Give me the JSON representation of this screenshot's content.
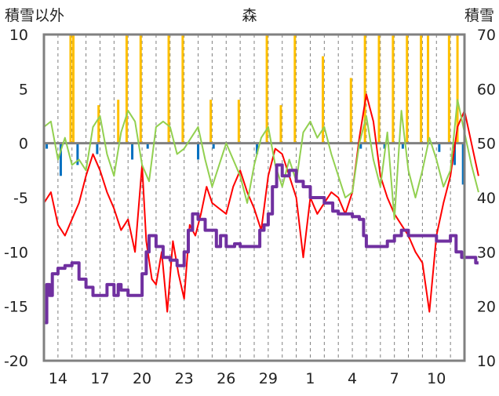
{
  "header": {
    "title": "森",
    "left_axis_label": "積雪以外",
    "right_axis_label": "積雪"
  },
  "colors": {
    "red_series": "#ff0000",
    "green_series": "#92d050",
    "purple_series": "#7030a0",
    "orange_bars": "#ffc000",
    "blue_bars": "#0070c0",
    "frame": "#808080",
    "zero_line": "#808080",
    "grid": "#808080"
  },
  "chart_data": {
    "type": "line",
    "title": "森",
    "legend": "none",
    "x_ticks": [
      "14",
      "17",
      "20",
      "23",
      "26",
      "29",
      "1",
      "4",
      "7",
      "10"
    ],
    "x_range_days": [
      13,
      43
    ],
    "y_left": {
      "label": "積雪以外",
      "lim": [
        -20,
        10
      ],
      "ticks": [
        "10",
        "5",
        "0",
        "-5",
        "-10",
        "-15",
        "-20"
      ]
    },
    "y_right": {
      "label": "積雪",
      "lim": [
        10,
        70
      ],
      "ticks": [
        "70",
        "60",
        "50",
        "40",
        "30",
        "20",
        "10"
      ]
    },
    "grid": {
      "vertical": "dashed",
      "horizontal": false
    },
    "series": [
      {
        "name": "",
        "kind": "line",
        "axis": "left",
        "color_key": "red_series",
        "points": [
          [
            13,
            -5.5
          ],
          [
            13.5,
            -4.5
          ],
          [
            14,
            -7.5
          ],
          [
            14.5,
            -8.5
          ],
          [
            15,
            -7
          ],
          [
            15.5,
            -5.5
          ],
          [
            16,
            -3
          ],
          [
            16.5,
            -1
          ],
          [
            17,
            -2.5
          ],
          [
            17.5,
            -4.5
          ],
          [
            18,
            -6
          ],
          [
            18.5,
            -8
          ],
          [
            19,
            -7
          ],
          [
            19.5,
            -10
          ],
          [
            20,
            -2
          ],
          [
            20.3,
            -9
          ],
          [
            20.7,
            -12.5
          ],
          [
            21,
            -13
          ],
          [
            21.4,
            -10
          ],
          [
            21.8,
            -15.5
          ],
          [
            22.2,
            -9
          ],
          [
            22.6,
            -12
          ],
          [
            23,
            -14.3
          ],
          [
            23.4,
            -7.5
          ],
          [
            23.8,
            -8.5
          ],
          [
            24.2,
            -6.5
          ],
          [
            24.6,
            -4
          ],
          [
            25,
            -5.5
          ],
          [
            25.5,
            -6
          ],
          [
            26,
            -6.5
          ],
          [
            26.5,
            -4
          ],
          [
            27,
            -2.5
          ],
          [
            27.5,
            -4.5
          ],
          [
            28,
            -6
          ],
          [
            28.5,
            -8
          ],
          [
            29,
            -3
          ],
          [
            29.5,
            -0.5
          ],
          [
            30,
            -1
          ],
          [
            30.5,
            -3
          ],
          [
            31,
            -5
          ],
          [
            31.5,
            -10.5
          ],
          [
            32,
            -5
          ],
          [
            32.5,
            -6.5
          ],
          [
            33,
            -5.5
          ],
          [
            33.5,
            -4.5
          ],
          [
            34,
            -5
          ],
          [
            34.5,
            -6.5
          ],
          [
            35,
            -4.5
          ],
          [
            35.5,
            0.5
          ],
          [
            36,
            4.5
          ],
          [
            36.5,
            2
          ],
          [
            37,
            -3
          ],
          [
            37.5,
            -5
          ],
          [
            38,
            -6.5
          ],
          [
            38.5,
            -7.5
          ],
          [
            39,
            -8.5
          ],
          [
            39.5,
            -10
          ],
          [
            40,
            -11
          ],
          [
            40.5,
            -15.5
          ],
          [
            41,
            -8.5
          ],
          [
            41.5,
            -5.5
          ],
          [
            42,
            -3
          ],
          [
            42.5,
            1.5
          ],
          [
            43,
            3
          ],
          [
            43.5,
            0
          ],
          [
            44,
            -3
          ]
        ]
      },
      {
        "name": "",
        "kind": "line",
        "axis": "left",
        "color_key": "green_series",
        "points": [
          [
            13,
            1.5
          ],
          [
            13.5,
            2
          ],
          [
            14,
            -1.5
          ],
          [
            14.5,
            0.5
          ],
          [
            15,
            -2
          ],
          [
            15.5,
            -1.5
          ],
          [
            16,
            -2.5
          ],
          [
            16.5,
            1.5
          ],
          [
            17,
            2.5
          ],
          [
            17.5,
            -1
          ],
          [
            18,
            -3
          ],
          [
            18.5,
            1
          ],
          [
            19,
            3
          ],
          [
            19.5,
            2
          ],
          [
            20,
            -2
          ],
          [
            20.5,
            -3.5
          ],
          [
            21,
            1.5
          ],
          [
            21.5,
            2
          ],
          [
            22,
            1.5
          ],
          [
            22.5,
            -1
          ],
          [
            23,
            -0.5
          ],
          [
            23.5,
            0.5
          ],
          [
            24,
            1.5
          ],
          [
            24.5,
            -1.5
          ],
          [
            25,
            -4
          ],
          [
            25.5,
            -2
          ],
          [
            26,
            0
          ],
          [
            26.5,
            -1.5
          ],
          [
            27,
            -3
          ],
          [
            27.5,
            -5.5
          ],
          [
            28,
            -2
          ],
          [
            28.5,
            0.5
          ],
          [
            29,
            1.5
          ],
          [
            29.5,
            -2
          ],
          [
            30,
            -4
          ],
          [
            30.5,
            -1.5
          ],
          [
            31,
            -3.5
          ],
          [
            31.5,
            1
          ],
          [
            32,
            2
          ],
          [
            32.5,
            0.5
          ],
          [
            33,
            1.5
          ],
          [
            33.5,
            -1
          ],
          [
            34,
            -3
          ],
          [
            34.5,
            -5
          ],
          [
            35,
            -4.5
          ],
          [
            35.5,
            0
          ],
          [
            36,
            2.5
          ],
          [
            36.5,
            -1.5
          ],
          [
            37,
            -4
          ],
          [
            37.5,
            1
          ],
          [
            38,
            -7
          ],
          [
            38.5,
            3
          ],
          [
            39,
            -2.5
          ],
          [
            39.5,
            -5
          ],
          [
            40,
            -2.5
          ],
          [
            40.5,
            0.5
          ],
          [
            41,
            -1.5
          ],
          [
            41.5,
            -4
          ],
          [
            42,
            -2.5
          ],
          [
            42.5,
            4
          ],
          [
            43,
            1
          ],
          [
            43.5,
            -2
          ],
          [
            44,
            -4.5
          ]
        ]
      },
      {
        "name": "",
        "kind": "step",
        "axis": "right",
        "color_key": "purple_series",
        "points": [
          [
            13,
            17
          ],
          [
            13.2,
            24
          ],
          [
            13.4,
            22
          ],
          [
            13.6,
            26
          ],
          [
            14,
            27
          ],
          [
            14.5,
            27.5
          ],
          [
            15,
            28
          ],
          [
            15.4,
            28
          ],
          [
            15.5,
            25
          ],
          [
            16,
            23.5
          ],
          [
            16.5,
            22
          ],
          [
            17,
            22
          ],
          [
            17.5,
            24
          ],
          [
            18,
            22
          ],
          [
            18.3,
            24
          ],
          [
            18.5,
            23
          ],
          [
            19,
            22
          ],
          [
            19.5,
            22
          ],
          [
            20,
            26
          ],
          [
            20.3,
            30
          ],
          [
            20.5,
            33
          ],
          [
            21,
            31
          ],
          [
            21.5,
            29
          ],
          [
            22,
            28.5
          ],
          [
            22.5,
            27.5
          ],
          [
            23,
            30
          ],
          [
            23.3,
            34
          ],
          [
            23.6,
            37
          ],
          [
            24,
            36
          ],
          [
            24.5,
            34
          ],
          [
            25,
            34
          ],
          [
            25.3,
            31
          ],
          [
            25.6,
            33
          ],
          [
            26,
            31
          ],
          [
            26.3,
            31
          ],
          [
            26.6,
            31.5
          ],
          [
            27,
            31
          ],
          [
            27.5,
            31
          ],
          [
            28,
            31
          ],
          [
            28.4,
            34
          ],
          [
            28.7,
            35
          ],
          [
            29,
            37
          ],
          [
            29.3,
            42
          ],
          [
            29.6,
            46
          ],
          [
            30,
            44
          ],
          [
            30.5,
            45
          ],
          [
            31,
            43
          ],
          [
            31.5,
            42
          ],
          [
            32,
            40
          ],
          [
            32.5,
            40
          ],
          [
            33,
            39
          ],
          [
            33.4,
            39
          ],
          [
            33.6,
            37.5
          ],
          [
            34,
            37
          ],
          [
            34.5,
            37
          ],
          [
            35,
            36.5
          ],
          [
            35.5,
            36
          ],
          [
            35.8,
            33
          ],
          [
            36,
            31
          ],
          [
            36.5,
            31
          ],
          [
            37,
            31
          ],
          [
            37.5,
            32
          ],
          [
            38,
            33
          ],
          [
            38.5,
            34
          ],
          [
            38.9,
            34
          ],
          [
            39,
            33
          ],
          [
            39.5,
            33
          ],
          [
            40,
            33
          ],
          [
            40.5,
            33
          ],
          [
            41,
            32
          ],
          [
            41.5,
            32
          ],
          [
            42,
            33
          ],
          [
            42.2,
            33
          ],
          [
            42.4,
            30
          ],
          [
            42.8,
            29
          ],
          [
            43,
            29
          ],
          [
            43.5,
            29
          ],
          [
            43.8,
            28
          ],
          [
            44,
            28
          ]
        ]
      },
      {
        "name": "",
        "kind": "bars",
        "axis": "left",
        "color_key": "orange_bars",
        "points": [
          [
            14.9,
            10
          ],
          [
            15.1,
            10
          ],
          [
            16.9,
            3.5
          ],
          [
            18.3,
            4
          ],
          [
            18.9,
            10
          ],
          [
            19.9,
            10
          ],
          [
            21.9,
            10
          ],
          [
            22.9,
            10
          ],
          [
            24.9,
            4
          ],
          [
            26.9,
            4
          ],
          [
            28.9,
            10
          ],
          [
            29.9,
            3.5
          ],
          [
            30.9,
            10
          ],
          [
            32.9,
            8
          ],
          [
            34.9,
            6
          ],
          [
            35.9,
            10
          ],
          [
            36.9,
            10
          ],
          [
            37.9,
            10
          ],
          [
            38.9,
            10
          ],
          [
            39.9,
            10
          ],
          [
            40.4,
            10
          ],
          [
            41.9,
            10
          ],
          [
            42.5,
            10
          ]
        ]
      },
      {
        "name": "",
        "kind": "bars",
        "axis": "left",
        "color_key": "blue_bars",
        "points": [
          [
            13.2,
            -0.5
          ],
          [
            14.2,
            -3
          ],
          [
            15.4,
            -2
          ],
          [
            16.8,
            -1
          ],
          [
            19.3,
            -1.5
          ],
          [
            20.4,
            -0.5
          ],
          [
            24,
            -1.5
          ],
          [
            25.1,
            -0.5
          ],
          [
            28.2,
            -1
          ],
          [
            35.6,
            -0.5
          ],
          [
            37.3,
            -0.5
          ],
          [
            38.6,
            -0.5
          ],
          [
            41.2,
            -0.8
          ],
          [
            42.3,
            -2
          ],
          [
            42.9,
            -3.8
          ]
        ]
      }
    ]
  }
}
